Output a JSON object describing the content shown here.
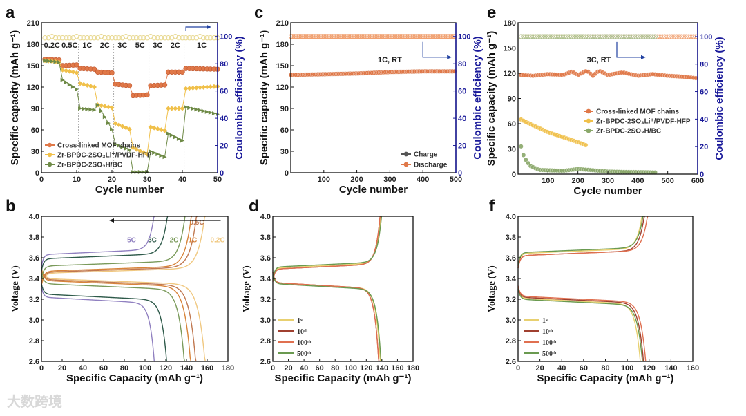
{
  "watermark": "大数跨境",
  "chart_data": [
    {
      "id": "a",
      "panel_label": "a",
      "type": "scatter",
      "xlabel": "Cycle number",
      "ylabel": "Specific capacity (mAh g⁻¹)",
      "y2label": "Coulombic efficiency (%)",
      "xlim": [
        0,
        50
      ],
      "ylim": [
        0,
        210
      ],
      "y2lim": [
        0,
        110
      ],
      "xticks": [
        0,
        10,
        20,
        30,
        40,
        50
      ],
      "yticks": [
        0,
        30,
        60,
        90,
        120,
        150,
        180,
        210
      ],
      "y2ticks": [
        0,
        20,
        40,
        60,
        80,
        100
      ],
      "rate_labels": [
        "0.2C",
        "0.5C",
        "1C",
        "2C",
        "3C",
        "5C",
        "3C",
        "2C",
        "1C"
      ],
      "step_cycles": [
        [
          1,
          5
        ],
        [
          6,
          10
        ],
        [
          11,
          15
        ],
        [
          16,
          20
        ],
        [
          21,
          25
        ],
        [
          26,
          30
        ],
        [
          31,
          35
        ],
        [
          36,
          40
        ],
        [
          41,
          50
        ]
      ],
      "coulombic_efficiency": 99,
      "ce_color": "#e8d890",
      "series": [
        {
          "name": "Cross-linked MOF chains",
          "color": "#e07848",
          "steps": [
            [
              159,
              158
            ],
            [
              150,
              151
            ],
            [
              146,
              145
            ],
            [
              141,
              140
            ],
            [
              124,
              122
            ],
            [
              108,
              109
            ],
            [
              122,
              123
            ],
            [
              141,
              141
            ],
            [
              146,
              145
            ]
          ]
        },
        {
          "name": "Zr-BPDC-2SO₃Li⁺/PVDF-HFP",
          "color": "#f0c04a",
          "steps": [
            [
              157,
              155
            ],
            [
              144,
              140
            ],
            [
              125,
              120
            ],
            [
              95,
              91
            ],
            [
              69,
              61
            ],
            [
              35,
              26
            ],
            [
              64,
              59
            ],
            [
              90,
              90
            ],
            [
              118,
              121
            ]
          ]
        },
        {
          "name": "Zr-BPDC-2SO₃H/BC",
          "color": "#6e8a46",
          "steps": [
            [
              157,
              155
            ],
            [
              130,
              117
            ],
            [
              90,
              88
            ],
            [
              95,
              61
            ],
            [
              40,
              32
            ],
            [
              1,
              1
            ],
            [
              30,
              22
            ],
            [
              55,
              45
            ],
            [
              92,
              82
            ]
          ]
        }
      ]
    },
    {
      "id": "c",
      "panel_label": "c",
      "type": "scatter",
      "xlabel": "Cycle number",
      "ylabel": "Specific capacity (mAh g⁻¹)",
      "y2label": "Coulombic efficiency (%)",
      "xlim": [
        0,
        500
      ],
      "ylim": [
        0,
        210
      ],
      "y2lim": [
        0,
        110
      ],
      "xticks": [
        100,
        200,
        300,
        400,
        500
      ],
      "yticks": [
        0,
        30,
        60,
        90,
        120,
        150,
        180,
        210
      ],
      "y2ticks": [
        0,
        20,
        40,
        60,
        80,
        100
      ],
      "annotation": "1C, RT",
      "coulombic_efficiency": 100,
      "ce_color": "#f0a070",
      "series": [
        {
          "name": "Charge",
          "color": "#555555",
          "points": [
            [
              1,
              137
            ],
            [
              100,
              138
            ],
            [
              200,
              139
            ],
            [
              300,
              141
            ],
            [
              400,
              142
            ],
            [
              500,
              142
            ]
          ]
        },
        {
          "name": "Discharge",
          "color": "#e07848",
          "points": [
            [
              1,
              137
            ],
            [
              100,
              138
            ],
            [
              200,
              139
            ],
            [
              300,
              141
            ],
            [
              400,
              142
            ],
            [
              500,
              142
            ]
          ]
        }
      ]
    },
    {
      "id": "e",
      "panel_label": "e",
      "type": "scatter",
      "xlabel": "Cycle number",
      "ylabel": "Specific capacity (mAh g⁻¹)",
      "y2label": "Coulombic efficiency (%)",
      "xlim": [
        0,
        600
      ],
      "ylim": [
        0,
        180
      ],
      "y2lim": [
        0,
        110
      ],
      "xticks": [
        100,
        200,
        300,
        400,
        500,
        600
      ],
      "yticks": [
        0,
        30,
        60,
        90,
        120,
        150,
        180
      ],
      "y2ticks": [
        0,
        20,
        40,
        60,
        80,
        100
      ],
      "annotation": "3C, RT",
      "coulombic_efficiency": 100,
      "series": [
        {
          "name": "Cross-linked MOF chains",
          "color": "#e07848",
          "ce_color": "#f0a070",
          "points": [
            [
              10,
              118
            ],
            [
              50,
              117
            ],
            [
              100,
              119
            ],
            [
              150,
              118
            ],
            [
              180,
              122
            ],
            [
              200,
              118
            ],
            [
              230,
              123
            ],
            [
              250,
              117
            ],
            [
              270,
              123
            ],
            [
              300,
              118
            ],
            [
              350,
              121
            ],
            [
              400,
              117
            ],
            [
              450,
              119
            ],
            [
              500,
              117
            ],
            [
              550,
              116
            ],
            [
              600,
              114
            ]
          ]
        },
        {
          "name": "Zr-BPDC-2SO₃Li⁺/PVDF-HFP",
          "color": "#f0c04a",
          "ce_color": "#e8dc90",
          "points": [
            [
              10,
              65
            ],
            [
              50,
              58
            ],
            [
              100,
              50
            ],
            [
              150,
              44
            ],
            [
              200,
              38
            ],
            [
              230,
              34
            ]
          ]
        },
        {
          "name": "Zr-BPDC-2SO₃H/BC",
          "color": "#8aa86a",
          "ce_color": "#a8c090",
          "points": [
            [
              10,
              33
            ],
            [
              20,
              20
            ],
            [
              40,
              10
            ],
            [
              70,
              5
            ],
            [
              150,
              4
            ],
            [
              200,
              6
            ],
            [
              240,
              5
            ],
            [
              300,
              3
            ],
            [
              460,
              2
            ]
          ]
        }
      ]
    },
    {
      "id": "b",
      "panel_label": "b",
      "type": "line",
      "xlabel": "Specific Capacity (mAh g⁻¹)",
      "ylabel": "Voltage (V)",
      "xlim": [
        0,
        180
      ],
      "ylim": [
        2.6,
        4.0
      ],
      "xticks": [
        0,
        20,
        40,
        60,
        80,
        100,
        120,
        140,
        160,
        180
      ],
      "yticks": [
        2.6,
        2.8,
        3.0,
        3.2,
        3.4,
        3.6,
        3.8,
        4.0
      ],
      "curves": [
        {
          "label": "0.2C",
          "color": "#f0c880",
          "charge_capacity": 159,
          "discharge_capacity": 159,
          "charge_plateau": 3.45,
          "discharge_plateau": 3.4
        },
        {
          "label": "0.5C",
          "color": "#c07850",
          "charge_capacity": 151,
          "discharge_capacity": 150,
          "charge_plateau": 3.46,
          "discharge_plateau": 3.39
        },
        {
          "label": "1C",
          "color": "#d8843a",
          "charge_capacity": 146,
          "discharge_capacity": 145,
          "charge_plateau": 3.47,
          "discharge_plateau": 3.38
        },
        {
          "label": "2C",
          "color": "#7a9a5a",
          "charge_capacity": 140,
          "discharge_capacity": 139,
          "charge_plateau": 3.52,
          "discharge_plateau": 3.35
        },
        {
          "label": "3C",
          "color": "#2e5a4a",
          "charge_capacity": 123,
          "discharge_capacity": 122,
          "charge_plateau": 3.59,
          "discharge_plateau": 3.25
        },
        {
          "label": "5C",
          "color": "#9080c0",
          "charge_capacity": 110,
          "discharge_capacity": 110,
          "charge_plateau": 3.63,
          "discharge_plateau": 3.22
        }
      ]
    },
    {
      "id": "d",
      "panel_label": "d",
      "type": "line",
      "xlabel": "Specific Capacity (mAh g⁻¹)",
      "ylabel": "Voltage (V)",
      "xlim": [
        0,
        180
      ],
      "ylim": [
        2.6,
        4.0
      ],
      "xticks": [
        0,
        20,
        40,
        60,
        80,
        100,
        120,
        140,
        160,
        180
      ],
      "yticks": [
        2.6,
        2.8,
        3.0,
        3.2,
        3.4,
        3.6,
        3.8,
        4.0
      ],
      "curves": [
        {
          "label": "1ˢᵗ",
          "color": "#e8d070",
          "charge_capacity": 140,
          "discharge_capacity": 139,
          "charge_plateau": 3.5,
          "discharge_plateau": 3.36
        },
        {
          "label": "10ᵗʰ",
          "color": "#a04030",
          "charge_capacity": 139,
          "discharge_capacity": 137,
          "charge_plateau": 3.49,
          "discharge_plateau": 3.36
        },
        {
          "label": "100ᵗʰ",
          "color": "#e07050",
          "charge_capacity": 139,
          "discharge_capacity": 137,
          "charge_plateau": 3.49,
          "discharge_plateau": 3.36
        },
        {
          "label": "500ᵗʰ",
          "color": "#6a9a50",
          "charge_capacity": 141,
          "discharge_capacity": 140,
          "charge_plateau": 3.51,
          "discharge_plateau": 3.35
        }
      ]
    },
    {
      "id": "f",
      "panel_label": "f",
      "type": "line",
      "xlabel": "Specific Capacity (mAh g⁻¹)",
      "ylabel": "Voltage (V)",
      "xlim": [
        0,
        160
      ],
      "ylim": [
        2.6,
        4.0
      ],
      "xticks": [
        0,
        20,
        40,
        60,
        80,
        100,
        120,
        140,
        160
      ],
      "yticks": [
        2.6,
        2.8,
        3.0,
        3.2,
        3.4,
        3.6,
        3.8,
        4.0
      ],
      "curves": [
        {
          "label": "1ˢᵗ",
          "color": "#e8d070",
          "charge_capacity": 115,
          "discharge_capacity": 113,
          "charge_plateau": 3.64,
          "discharge_plateau": 3.21
        },
        {
          "label": "10ᵗʰ",
          "color": "#a04030",
          "charge_capacity": 117,
          "discharge_capacity": 116,
          "charge_plateau": 3.62,
          "discharge_plateau": 3.22
        },
        {
          "label": "100ᵗʰ",
          "color": "#e07050",
          "charge_capacity": 120,
          "discharge_capacity": 118,
          "charge_plateau": 3.62,
          "discharge_plateau": 3.23
        },
        {
          "label": "500ᵗʰ",
          "color": "#6a9a50",
          "charge_capacity": 116,
          "discharge_capacity": 115,
          "charge_plateau": 3.65,
          "discharge_plateau": 3.2
        }
      ]
    }
  ]
}
